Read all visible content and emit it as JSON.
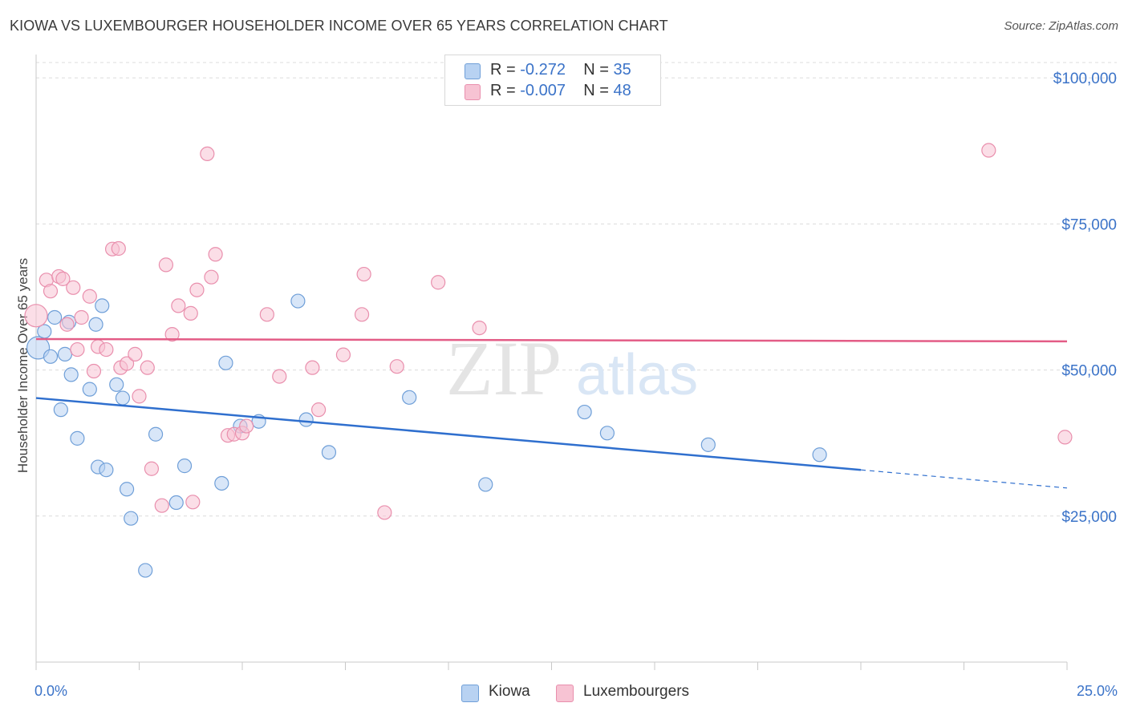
{
  "header": {
    "title": "KIOWA VS LUXEMBOURGER HOUSEHOLDER INCOME OVER 65 YEARS CORRELATION CHART",
    "source": "Source: ZipAtlas.com"
  },
  "legend_top": {
    "rows": [
      {
        "r_label": "R =",
        "r_value": "-0.272",
        "n_label": "N =",
        "n_value": "35"
      },
      {
        "r_label": "R =",
        "r_value": "-0.007",
        "n_label": "N =",
        "n_value": "48"
      }
    ]
  },
  "legend_bottom": {
    "items": [
      "Kiowa",
      "Luxembourgers"
    ]
  },
  "watermark": {
    "zip": "ZIP",
    "atlas": "atlas"
  },
  "colors": {
    "kiowa_fill": "#b8d2f2",
    "kiowa_stroke": "#6f9fd8",
    "kiowa_line": "#2f6fce",
    "lux_fill": "#f7c3d3",
    "lux_stroke": "#e98fad",
    "lux_line": "#e35c86",
    "tick_label": "#3b73c8",
    "grid": "#dcdcdc"
  },
  "chart_data": {
    "type": "scatter",
    "title": "KIOWA VS LUXEMBOURGER HOUSEHOLDER INCOME OVER 65 YEARS CORRELATION CHART",
    "xlabel": "",
    "ylabel": "Householder Income Over 65 years",
    "xlim": [
      0,
      25
    ],
    "ylim": [
      0,
      104000
    ],
    "x_tick_labels": [
      "0.0%",
      "25.0%"
    ],
    "y_ticks": [
      25000,
      50000,
      75000,
      100000
    ],
    "y_tick_labels": [
      "$25,000",
      "$50,000",
      "$75,000",
      "$100,000"
    ],
    "grid": true,
    "legend_position": "top-center",
    "series": [
      {
        "name": "Kiowa",
        "r": -0.272,
        "n": 35,
        "points": [
          [
            0.05,
            53800
          ],
          [
            0.2,
            56600
          ],
          [
            0.35,
            52300
          ],
          [
            0.45,
            59000
          ],
          [
            0.6,
            43200
          ],
          [
            0.7,
            52700
          ],
          [
            0.8,
            58200
          ],
          [
            0.85,
            49200
          ],
          [
            1.0,
            38300
          ],
          [
            1.3,
            46700
          ],
          [
            1.45,
            57800
          ],
          [
            1.5,
            33400
          ],
          [
            1.6,
            61000
          ],
          [
            1.7,
            32900
          ],
          [
            1.95,
            47500
          ],
          [
            2.1,
            45200
          ],
          [
            2.2,
            29600
          ],
          [
            2.3,
            24600
          ],
          [
            2.65,
            15700
          ],
          [
            2.9,
            39000
          ],
          [
            3.4,
            27300
          ],
          [
            3.6,
            33600
          ],
          [
            4.5,
            30600
          ],
          [
            4.6,
            51200
          ],
          [
            4.95,
            40400
          ],
          [
            5.4,
            41200
          ],
          [
            6.35,
            61800
          ],
          [
            6.55,
            41500
          ],
          [
            7.1,
            35900
          ],
          [
            9.05,
            45300
          ],
          [
            10.9,
            30400
          ],
          [
            13.3,
            42800
          ],
          [
            13.85,
            39200
          ],
          [
            16.3,
            37200
          ],
          [
            19.0,
            35500
          ]
        ],
        "trend": {
          "x": [
            0,
            20
          ],
          "y": [
            45200,
            32900
          ],
          "dashed_to": [
            25,
            29800
          ]
        }
      },
      {
        "name": "Luxembourgers",
        "r": -0.007,
        "n": 48,
        "points": [
          [
            0.0,
            59300
          ],
          [
            0.25,
            65400
          ],
          [
            0.35,
            63500
          ],
          [
            0.55,
            66000
          ],
          [
            0.65,
            65600
          ],
          [
            0.75,
            57800
          ],
          [
            0.9,
            64100
          ],
          [
            1.0,
            53500
          ],
          [
            1.1,
            59000
          ],
          [
            1.3,
            62600
          ],
          [
            1.4,
            49800
          ],
          [
            1.5,
            54000
          ],
          [
            1.7,
            53500
          ],
          [
            1.85,
            70700
          ],
          [
            2.0,
            70800
          ],
          [
            2.05,
            50400
          ],
          [
            2.2,
            51100
          ],
          [
            2.4,
            52700
          ],
          [
            2.5,
            45500
          ],
          [
            2.7,
            50400
          ],
          [
            2.8,
            33100
          ],
          [
            3.05,
            26800
          ],
          [
            3.15,
            68000
          ],
          [
            3.3,
            56100
          ],
          [
            3.45,
            61000
          ],
          [
            3.75,
            59700
          ],
          [
            3.8,
            27400
          ],
          [
            3.9,
            63700
          ],
          [
            4.15,
            87000
          ],
          [
            4.25,
            65900
          ],
          [
            4.35,
            69800
          ],
          [
            4.65,
            38800
          ],
          [
            4.8,
            39000
          ],
          [
            5.0,
            39200
          ],
          [
            5.1,
            40400
          ],
          [
            5.6,
            59500
          ],
          [
            5.9,
            48900
          ],
          [
            6.7,
            50400
          ],
          [
            6.85,
            43200
          ],
          [
            7.45,
            52600
          ],
          [
            7.9,
            59500
          ],
          [
            7.95,
            66400
          ],
          [
            8.45,
            25600
          ],
          [
            8.75,
            50600
          ],
          [
            9.75,
            65000
          ],
          [
            10.75,
            57200
          ],
          [
            23.1,
            87600
          ],
          [
            24.95,
            38500
          ]
        ],
        "trend": {
          "x": [
            0,
            25
          ],
          "y": [
            55300,
            54900
          ]
        }
      }
    ]
  }
}
